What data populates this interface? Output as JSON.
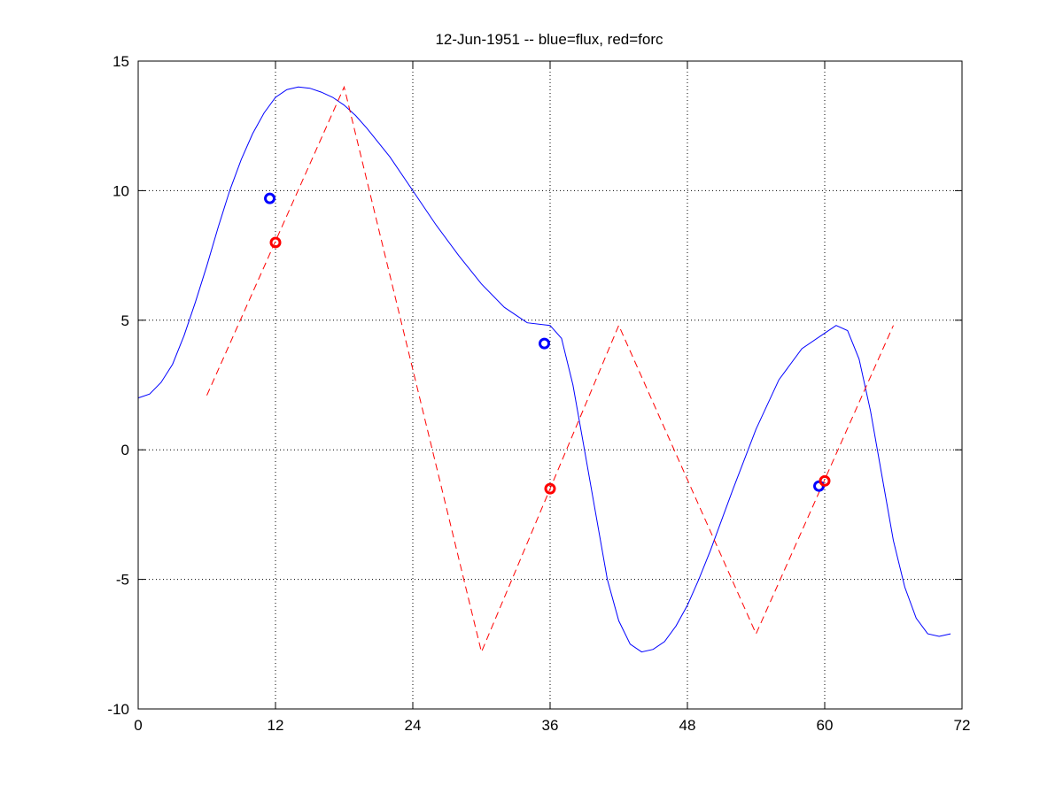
{
  "chart_data": {
    "type": "line",
    "title": "12-Jun-1951 -- blue=flux, red=forc",
    "xlabel": "",
    "ylabel": "",
    "xlim": [
      0,
      72
    ],
    "ylim": [
      -10,
      15
    ],
    "xticks": [
      0,
      12,
      24,
      36,
      48,
      60,
      72
    ],
    "yticks": [
      -10,
      -5,
      0,
      5,
      10,
      15
    ],
    "grid": true,
    "legend": "none",
    "series": [
      {
        "color": "#0000ff",
        "style": "solid",
        "x": [
          0,
          1,
          2,
          3,
          4,
          5,
          6,
          7,
          8,
          9,
          10,
          11,
          12,
          13,
          14,
          15,
          16,
          17,
          18,
          19,
          20,
          22,
          24,
          26,
          28,
          30,
          32,
          34,
          36,
          37,
          38,
          39,
          40,
          41,
          42,
          43,
          44,
          45,
          46,
          47,
          48,
          49,
          50,
          52,
          54,
          56,
          58,
          60,
          61,
          62,
          63,
          64,
          65,
          66,
          67,
          68,
          69,
          70,
          71
        ],
        "y": [
          2.0,
          2.15,
          2.6,
          3.3,
          4.4,
          5.7,
          7.1,
          8.6,
          10.0,
          11.2,
          12.2,
          13.0,
          13.6,
          13.9,
          14.0,
          13.95,
          13.8,
          13.6,
          13.3,
          12.9,
          12.4,
          11.3,
          10.0,
          8.7,
          7.5,
          6.4,
          5.5,
          4.9,
          4.8,
          4.3,
          2.5,
          0.0,
          -2.5,
          -5.0,
          -6.6,
          -7.5,
          -7.8,
          -7.7,
          -7.4,
          -6.8,
          -6.0,
          -5.0,
          -3.9,
          -1.5,
          0.8,
          2.7,
          3.9,
          4.5,
          4.8,
          4.6,
          3.5,
          1.5,
          -1.0,
          -3.5,
          -5.3,
          -6.5,
          -7.1,
          -7.2,
          -7.1
        ]
      },
      {
        "color": "#ff0000",
        "style": "dashed",
        "x": [
          6,
          18,
          30,
          42,
          54,
          66
        ],
        "y": [
          2.1,
          14.0,
          -7.8,
          4.8,
          -7.1,
          4.8
        ]
      }
    ],
    "markers": [
      {
        "x": 11.5,
        "y": 9.7,
        "color": "#0000ff"
      },
      {
        "x": 12.0,
        "y": 8.0,
        "color": "#ff0000"
      },
      {
        "x": 35.5,
        "y": 4.1,
        "color": "#0000ff"
      },
      {
        "x": 36.0,
        "y": -1.5,
        "color": "#ff0000"
      },
      {
        "x": 59.5,
        "y": -1.4,
        "color": "#0000ff"
      },
      {
        "x": 60.0,
        "y": -1.2,
        "color": "#ff0000"
      }
    ]
  }
}
